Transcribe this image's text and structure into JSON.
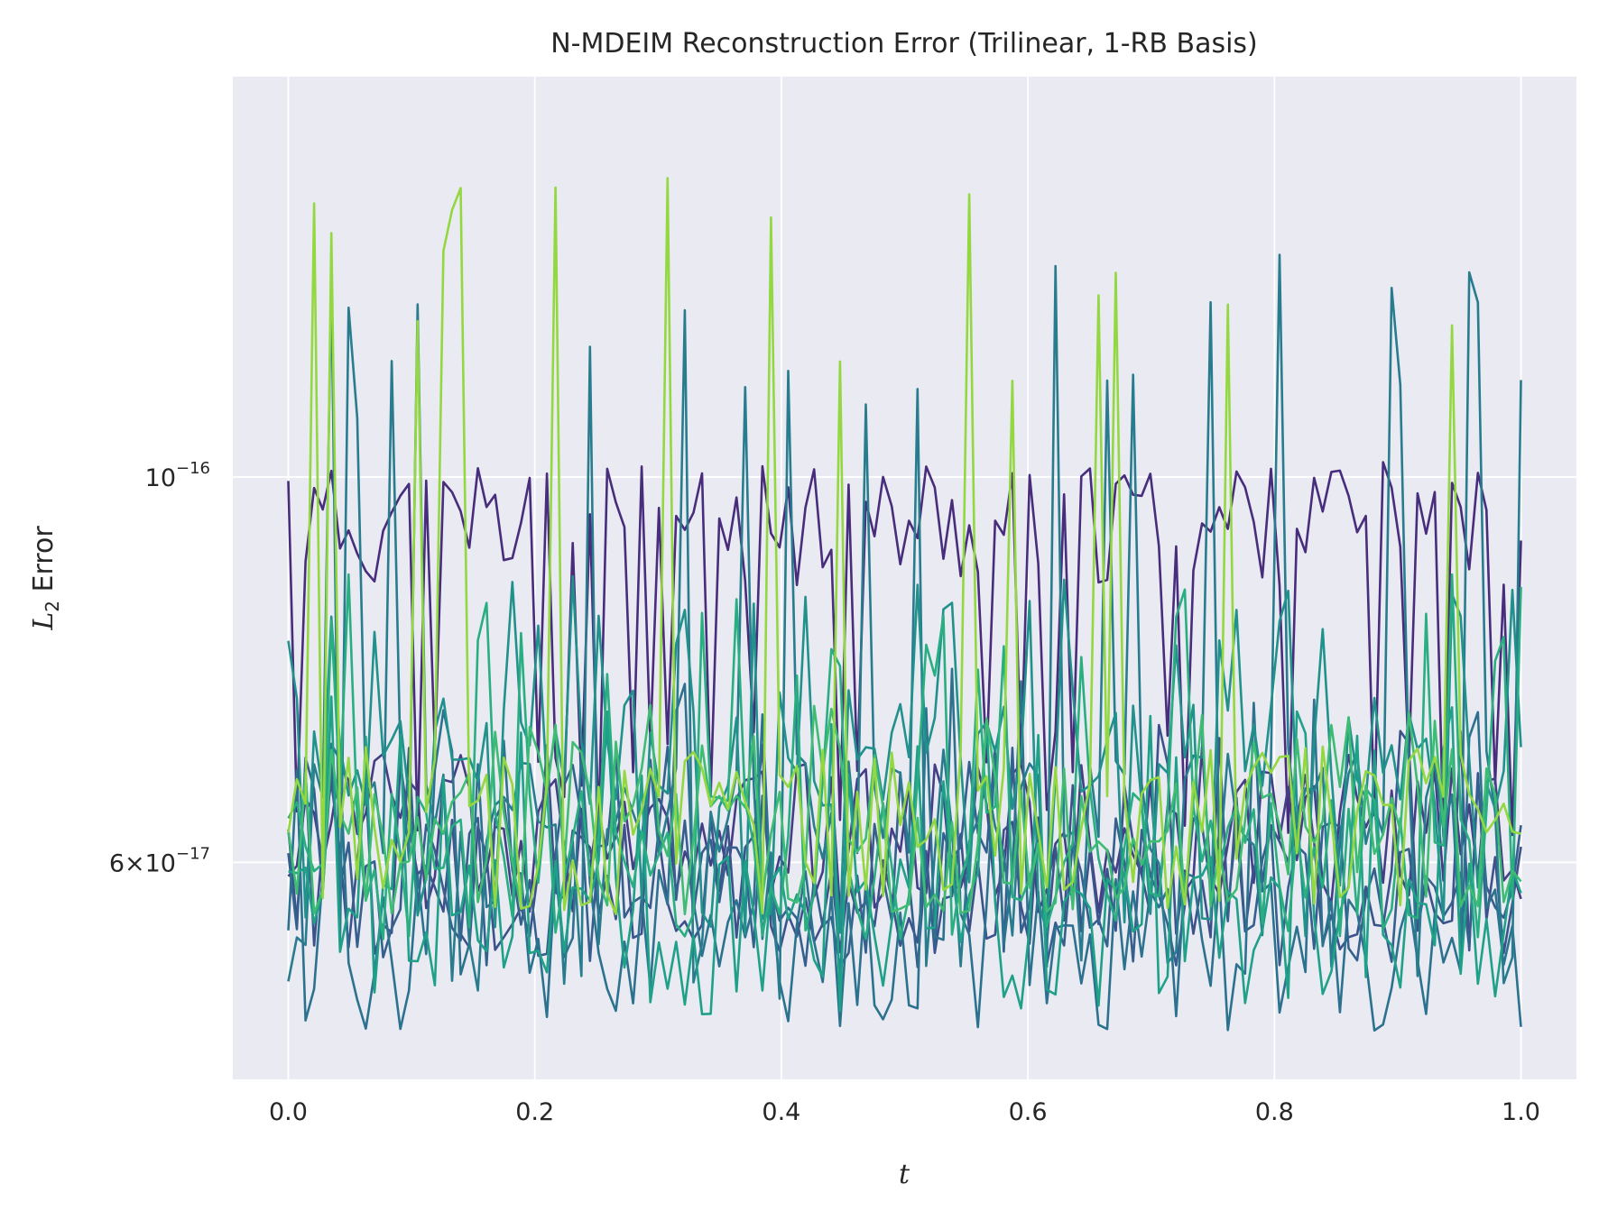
{
  "chart_data": {
    "type": "line",
    "title": "N-MDEIM Reconstruction Error (Trilinear, 1-RB Basis)",
    "xlabel": "t",
    "ylabel": {
      "base": "L",
      "sub": "2",
      "rest": " Error"
    },
    "xlim": [
      -0.045,
      1.045
    ],
    "ylim": [
      4.5e-17,
      1.7e-16
    ],
    "yscale": "log",
    "grid": true,
    "legend": "none",
    "x_ticks": [
      "0.0",
      "0.2",
      "0.4",
      "0.6",
      "0.8",
      "1.0"
    ],
    "x_tick_values": [
      0.0,
      0.2,
      0.4,
      0.6,
      0.8,
      1.0
    ],
    "y_ticks": [
      {
        "value": 1e-16,
        "mantissa": "",
        "exponent": "−16"
      },
      {
        "value": 6e-17,
        "mantissa": "6×",
        "exponent": "−17"
      }
    ],
    "colors": {
      "background": "#eaeaf2",
      "grid": "#ffffff",
      "text": "#262626"
    },
    "series": [
      {
        "color": "#472d7b",
        "baseline": 9.4e-17,
        "spike": 1.02e-16,
        "dip": 6.2e-17,
        "sample_step": 0.007,
        "seed": 11
      },
      {
        "color": "#433e85",
        "baseline": 6.3e-17,
        "spike": 7e-17,
        "dip": 5.6e-17,
        "sample_step": 0.007,
        "seed": 12
      },
      {
        "color": "#3b528b",
        "baseline": 5.9e-17,
        "spike": 7.2e-17,
        "dip": 5.3e-17,
        "sample_step": 0.007,
        "seed": 13
      },
      {
        "color": "#355f8d",
        "baseline": 5.9e-17,
        "spike": 7e-17,
        "dip": 5.2e-17,
        "sample_step": 0.007,
        "seed": 14
      },
      {
        "color": "#2c728e",
        "baseline": 5.5e-17,
        "spike": 7.8e-17,
        "dip": 4.8e-17,
        "sample_step": 0.007,
        "seed": 15
      },
      {
        "color": "#287c8e",
        "baseline": 6.5e-17,
        "spike": 1.36e-16,
        "dip": 5e-17,
        "sample_step": 0.007,
        "seed": 16
      },
      {
        "color": "#21918c",
        "baseline": 7e-17,
        "spike": 8.8e-17,
        "dip": 5.4e-17,
        "sample_step": 0.007,
        "seed": 17
      },
      {
        "color": "#1fa088",
        "baseline": 5.6e-17,
        "spike": 7.5e-17,
        "dip": 4.9e-17,
        "sample_step": 0.007,
        "seed": 18
      },
      {
        "color": "#28ae80",
        "baseline": 6.2e-17,
        "spike": 8.8e-17,
        "dip": 5.4e-17,
        "sample_step": 0.007,
        "seed": 19
      },
      {
        "color": "#3fbc73",
        "baseline": 6.3e-17,
        "spike": 7.4e-17,
        "dip": 5.6e-17,
        "sample_step": 0.007,
        "seed": 20
      },
      {
        "color": "#93d741",
        "baseline": 6.5e-17,
        "spike": 1.5e-16,
        "dip": 5.6e-17,
        "sample_step": 0.007,
        "seed": 21
      }
    ]
  }
}
